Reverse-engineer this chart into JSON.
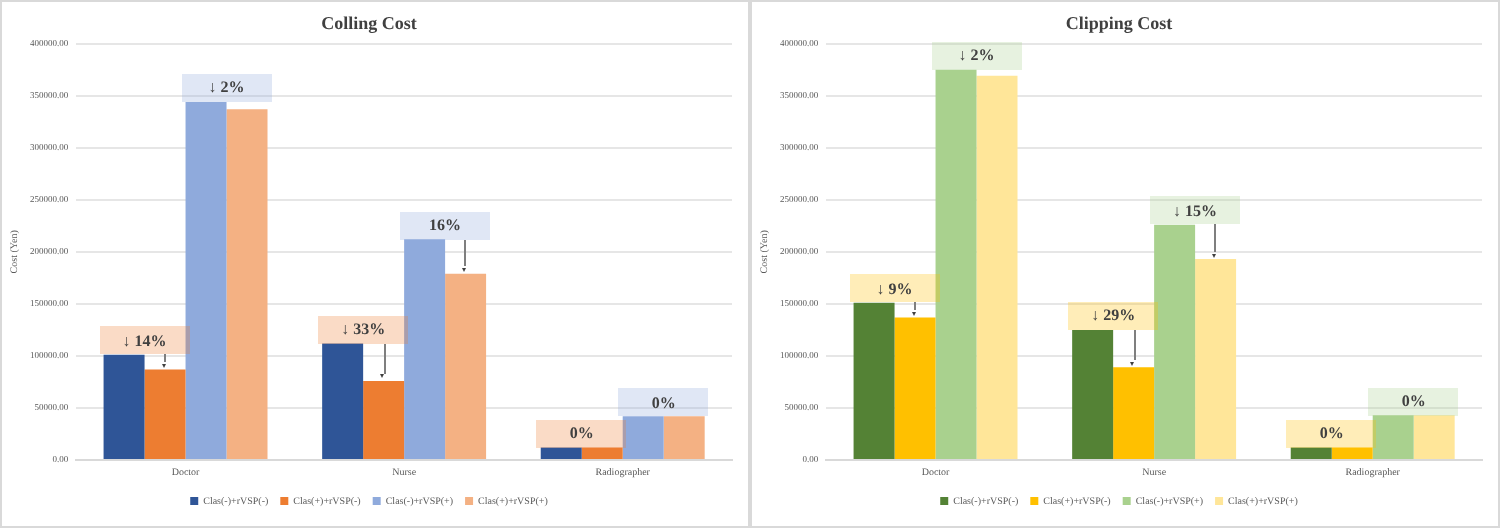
{
  "chart_data": [
    {
      "type": "bar",
      "title": "Colling Cost",
      "ylabel": "Cost (Yen)",
      "categories": [
        "Doctor",
        "Nurse",
        "Radiographer"
      ],
      "series": [
        {
          "name": "Clas(-)+rVSP(-)",
          "color": "#2f5597",
          "values": [
            101000,
            112000,
            12000
          ]
        },
        {
          "name": "Clas(+)+rVSP(-)",
          "color": "#ed7d31",
          "values": [
            87000,
            76000,
            12000
          ]
        },
        {
          "name": "Clas(-)+rVSP(+)",
          "color": "#8faadc",
          "values": [
            344000,
            212000,
            42000
          ]
        },
        {
          "name": "Clas(+)+rVSP(+)",
          "color": "#f4b183",
          "values": [
            337000,
            179000,
            42000
          ]
        }
      ],
      "ylim": [
        0,
        400000
      ],
      "yticks": [
        {
          "value": 0,
          "label": "0.00"
        },
        {
          "value": 50000,
          "label": "50000.00"
        },
        {
          "value": 100000,
          "label": "100000.00"
        },
        {
          "value": 150000,
          "label": "150000.00"
        },
        {
          "value": 200000,
          "label": "200000.00"
        },
        {
          "value": 250000,
          "label": "250000.00"
        },
        {
          "value": 300000,
          "label": "300000.00"
        },
        {
          "value": 350000,
          "label": "350000.00"
        },
        {
          "value": 400000,
          "label": "400000.00"
        }
      ],
      "grid": "y",
      "legend": "bottom",
      "annotations": [
        {
          "text": "↓ 14%",
          "x": "Doctor",
          "y": 101000
        },
        {
          "text": "↓ 2%",
          "x": "Doctor",
          "y": 344000
        },
        {
          "text": "↓ 33%",
          "x": "Nurse",
          "y": 112000
        },
        {
          "text": "16%",
          "x": "Nurse",
          "y": 212000
        },
        {
          "text": "0%",
          "x": "Radiographer",
          "y": 12000
        },
        {
          "text": "0%",
          "x": "Radiographer",
          "y": 42000
        }
      ]
    },
    {
      "type": "bar",
      "title": "Clipping Cost",
      "ylabel": "Cost (Yen)",
      "categories": [
        "Doctor",
        "Nurse",
        "Radiographer"
      ],
      "series": [
        {
          "name": "Clas(-)+rVSP(-)",
          "color": "#548235",
          "values": [
            151000,
            125000,
            12000
          ]
        },
        {
          "name": "Clas(+)+rVSP(-)",
          "color": "#ffc000",
          "values": [
            137000,
            89000,
            12000
          ]
        },
        {
          "name": "Clas(-)+rVSP(+)",
          "color": "#a9d18e",
          "values": [
            375000,
            226000,
            43000
          ]
        },
        {
          "name": "Clas(+)+rVSP(+)",
          "color": "#ffe699",
          "values": [
            369000,
            193000,
            43000
          ]
        }
      ],
      "ylim": [
        0,
        400000
      ],
      "yticks": [
        {
          "value": 0,
          "label": "0.00"
        },
        {
          "value": 50000,
          "label": "50000.00"
        },
        {
          "value": 100000,
          "label": "100000.00"
        },
        {
          "value": 150000,
          "label": "150000.00"
        },
        {
          "value": 200000,
          "label": "200000.00"
        },
        {
          "value": 250000,
          "label": "250000.00"
        },
        {
          "value": 300000,
          "label": "300000.00"
        },
        {
          "value": 350000,
          "label": "350000.00"
        },
        {
          "value": 400000,
          "label": "400000.00"
        }
      ],
      "grid": "y",
      "legend": "bottom",
      "annotations": [
        {
          "text": "↓ 9%",
          "x": "Doctor",
          "y": 151000
        },
        {
          "text": "↓ 2%",
          "x": "Doctor",
          "y": 375000
        },
        {
          "text": "↓ 29%",
          "x": "Nurse",
          "y": 125000
        },
        {
          "text": "↓ 15%",
          "x": "Nurse",
          "y": 226000
        },
        {
          "text": "0%",
          "x": "Radiographer",
          "y": 12000
        },
        {
          "text": "0%",
          "x": "Radiographer",
          "y": 43000
        }
      ]
    }
  ]
}
